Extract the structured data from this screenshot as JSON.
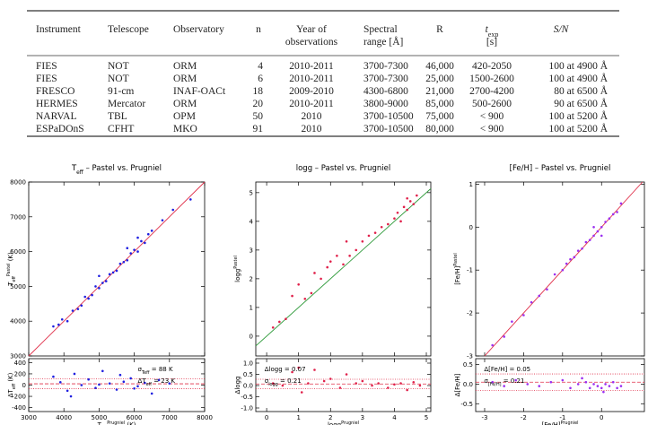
{
  "table": {
    "header": [
      [
        [
          {
            "t": "Instrument"
          }
        ]
      ],
      [
        [
          {
            "t": "Telescope"
          }
        ]
      ],
      [
        [
          {
            "t": "Observatory"
          }
        ]
      ],
      [
        [
          {
            "t": "n"
          }
        ]
      ],
      [
        [
          {
            "t": "Year of"
          }
        ],
        [
          {
            "t": "observations"
          }
        ]
      ],
      [
        [
          {
            "t": "Spectral"
          }
        ],
        [
          {
            "t": "range [Å]"
          }
        ]
      ],
      [
        [
          {
            "t": "R"
          }
        ]
      ],
      [
        [
          {
            "t": "t",
            "s": "i"
          },
          {
            "t": "exp",
            "s": "sub"
          }
        ],
        [
          {
            "t": "[s]"
          }
        ]
      ],
      [
        [
          {
            "t": "S/N",
            "s": "i"
          }
        ]
      ]
    ],
    "rows": [
      [
        "FIES",
        "NOT",
        "ORM",
        "4",
        "2010-2011",
        "3700-7300",
        "46,000",
        "420-2050",
        "100 at 4900 Å"
      ],
      [
        "FIES",
        "NOT",
        "ORM",
        "6",
        "2010-2011",
        "3700-7300",
        "25,000",
        "1500-2600",
        "100 at 4900 Å"
      ],
      [
        "FRESCO",
        "91-cm",
        "INAF-OACt",
        "18",
        "2009-2010",
        "4300-6800",
        "21,000",
        "2700-4200",
        "80 at 6500 Å"
      ],
      [
        "HERMES",
        "Mercator",
        "ORM",
        "20",
        "2010-2011",
        "3800-9000",
        "85,000",
        "500-2600",
        "90 at 6500 Å"
      ],
      [
        "NARVAL",
        "TBL",
        "OPM",
        "50",
        "2010",
        "3700-10500",
        "75,000",
        "< 900",
        "100 at 5200 Å"
      ],
      [
        "ESPaDOnS",
        "CFHT",
        "MKO",
        "91",
        "2010",
        "3700-10500",
        "80,000",
        "< 900",
        "100 at 5200 Å"
      ]
    ]
  },
  "chart_data": [
    {
      "type": "scatter",
      "color": "#1f1fe0",
      "line_color": "#e0304a",
      "diagonal": true,
      "title": [
        {
          "t": "T"
        },
        {
          "t": "eff",
          "s": "sub"
        },
        {
          "t": "  –  Pastel vs. Prugniel"
        }
      ],
      "ylabel": [
        {
          "t": "T"
        },
        {
          "t": "eff",
          "s": "sub"
        },
        {
          "t": "Pastel",
          "s": "super"
        },
        {
          "t": " (K)"
        }
      ],
      "xlabel": [
        {
          "t": "T"
        },
        {
          "t": "eff",
          "s": "sub"
        },
        {
          "t": "Prugniel",
          "s": "super"
        },
        {
          "t": " (K)"
        }
      ],
      "xlim": [
        3000,
        8000
      ],
      "xticks": [
        3000,
        4000,
        5000,
        6000,
        7000,
        8000
      ],
      "ylim": [
        3000,
        8000
      ],
      "yticks": [
        3000,
        4000,
        5000,
        6000,
        7000,
        8000
      ],
      "x": [
        3700,
        3850,
        3950,
        4100,
        4250,
        4400,
        4500,
        4600,
        4700,
        4800,
        4900,
        5000,
        5100,
        5200,
        5300,
        5400,
        5500,
        5600,
        5700,
        5800,
        5900,
        6000,
        6100,
        6200,
        6300,
        6400,
        6100,
        6500,
        6800,
        7100,
        7600,
        5000,
        5800
      ],
      "values": [
        3850,
        3900,
        4050,
        4000,
        4300,
        4350,
        4450,
        4700,
        4650,
        4750,
        5000,
        4950,
        5100,
        5150,
        5350,
        5400,
        5450,
        5650,
        5700,
        5750,
        5950,
        6050,
        6000,
        6300,
        6250,
        6500,
        6400,
        6600,
        6900,
        7200,
        7500,
        5300,
        6100
      ],
      "residual": {
        "ylabel": [
          {
            "t": "ΔT"
          },
          {
            "t": "eff",
            "s": "sub"
          },
          {
            "t": " (K)"
          }
        ],
        "ylim": [
          -470,
          470
        ],
        "yticks": [
          -400,
          -200,
          0,
          200,
          400
        ],
        "x": [
          3700,
          3900,
          4100,
          4300,
          4500,
          4700,
          4900,
          5100,
          5300,
          5500,
          5700,
          5900,
          6100,
          6300,
          6500,
          6700,
          7000,
          4200,
          5600,
          6000,
          5000
        ],
        "values": [
          150,
          50,
          -100,
          200,
          0,
          100,
          -50,
          250,
          30,
          -80,
          60,
          120,
          -20,
          40,
          -150,
          90,
          30,
          -200,
          180,
          -60,
          10
        ],
        "hlines": [
          -65,
          23,
          111
        ],
        "annotations": [
          [
            {
              "t": "σ"
            },
            {
              "t": "Teff",
              "s": "sub"
            },
            {
              "t": " = 88 K"
            }
          ],
          [
            {
              "t": "ΔT"
            },
            {
              "t": "eff",
              "s": "sub"
            },
            {
              "t": " = 23 K"
            }
          ]
        ]
      }
    },
    {
      "type": "scatter",
      "color": "#e0204a",
      "line_color": "#2e9a3a",
      "diagonal": true,
      "title": [
        {
          "t": "logg  –  Pastel vs. Prugniel"
        }
      ],
      "ylabel": [
        {
          "t": "logg"
        },
        {
          "t": "Pastel",
          "s": "super"
        }
      ],
      "xlabel": [
        {
          "t": "logg"
        },
        {
          "t": "Prugniel",
          "s": "super"
        }
      ],
      "xlim": [
        -0.34,
        5.14
      ],
      "xticks": [
        0,
        1,
        2,
        3,
        4,
        5
      ],
      "ylim": [
        -0.69,
        5.37
      ],
      "yticks": [
        0,
        1,
        2,
        3,
        4,
        5
      ],
      "x": [
        0.2,
        0.4,
        0.6,
        0.8,
        1.0,
        1.2,
        1.4,
        1.5,
        1.7,
        1.9,
        2.0,
        2.2,
        2.4,
        2.5,
        2.6,
        2.8,
        3.0,
        3.2,
        3.4,
        3.6,
        3.8,
        4.0,
        4.1,
        4.2,
        4.3,
        4.4,
        4.5,
        4.6,
        4.7,
        4.4
      ],
      "values": [
        0.3,
        0.5,
        0.6,
        1.4,
        1.8,
        1.3,
        1.5,
        2.2,
        2.0,
        2.4,
        2.6,
        2.8,
        2.5,
        3.3,
        2.8,
        3.0,
        3.3,
        3.5,
        3.6,
        3.8,
        3.9,
        4.1,
        4.3,
        4.0,
        4.5,
        4.4,
        4.7,
        4.6,
        4.9,
        4.8
      ],
      "residual": {
        "ylabel": [
          {
            "t": "Δlogg"
          }
        ],
        "ylim": [
          -1.16,
          1.2
        ],
        "yticks": [
          {
            "value": -1,
            "label": "-1.0"
          },
          -0.5,
          {
            "value": 0,
            "label": "0.0"
          },
          0.5,
          {
            "value": 1,
            "label": "1.0"
          }
        ],
        "x": [
          0.2,
          0.5,
          0.8,
          1.0,
          1.3,
          1.5,
          1.8,
          2.0,
          2.3,
          2.5,
          2.8,
          3.0,
          3.3,
          3.5,
          3.8,
          4.0,
          4.2,
          4.4,
          4.6,
          4.8,
          1.1
        ],
        "values": [
          0.1,
          0.0,
          0.6,
          0.8,
          0.1,
          0.7,
          0.2,
          0.3,
          -0.1,
          0.5,
          0.1,
          0.2,
          0.0,
          0.1,
          -0.1,
          0.05,
          0.1,
          -0.2,
          0.15,
          0.0,
          -0.3
        ],
        "hlines": [
          -0.14,
          0.07,
          0.28
        ],
        "annotations": [
          [
            {
              "t": "Δlogg = 0.07"
            }
          ],
          [
            {
              "t": "σ"
            },
            {
              "t": "logg",
              "s": "sub"
            },
            {
              "t": " = 0.21"
            }
          ]
        ]
      }
    },
    {
      "type": "scatter",
      "color": "#9b2ff0",
      "line_color": "#e0304a",
      "diagonal": true,
      "title": [
        {
          "t": "[Fe/H]  –  Pastel vs. Prugniel"
        }
      ],
      "ylabel": [
        {
          "t": "[Fe/H]"
        },
        {
          "t": "Pastel",
          "s": "super"
        }
      ],
      "xlabel": [
        {
          "t": "[Fe/H]"
        },
        {
          "t": "Prugniel",
          "s": "super"
        }
      ],
      "xlim": [
        -3.23,
        1.1
      ],
      "xticks": [
        -3,
        -2,
        -1,
        0
      ],
      "ylim": [
        -3,
        1.05
      ],
      "yticks": [
        -3,
        -2,
        -1,
        0,
        1
      ],
      "x": [
        -2.8,
        -2.5,
        -2.3,
        -2.0,
        -1.8,
        -1.6,
        -1.4,
        -1.2,
        -1.0,
        -0.9,
        -0.8,
        -0.7,
        -0.6,
        -0.5,
        -0.4,
        -0.3,
        -0.2,
        -0.1,
        0.0,
        0.1,
        0.2,
        0.3,
        0.4,
        0.5,
        -0.2,
        0.0
      ],
      "values": [
        -2.75,
        -2.55,
        -2.2,
        -2.05,
        -1.75,
        -1.6,
        -1.45,
        -1.1,
        -1.0,
        -0.85,
        -0.75,
        -0.7,
        -0.55,
        -0.5,
        -0.35,
        -0.3,
        -0.2,
        -0.1,
        0.0,
        0.12,
        0.2,
        0.3,
        0.35,
        0.55,
        0.0,
        -0.2
      ],
      "residual": {
        "ylabel": [
          {
            "t": "Δ[Fe/H]"
          }
        ],
        "ylim": [
          -0.7,
          0.65
        ],
        "yticks": [
          -0.5,
          {
            "value": 0,
            "label": "0.0"
          },
          0.5
        ],
        "x": [
          -2.8,
          -2.5,
          -2.2,
          -1.9,
          -1.6,
          -1.3,
          -1.0,
          -0.8,
          -0.6,
          -0.4,
          -0.3,
          -0.2,
          -0.1,
          0.0,
          0.1,
          0.2,
          0.3,
          0.4,
          0.5,
          -0.5,
          0.05
        ],
        "values": [
          0.05,
          -0.05,
          0.1,
          0.0,
          -0.05,
          0.05,
          0.1,
          -0.1,
          0.0,
          0.05,
          -0.1,
          0.0,
          -0.05,
          -0.1,
          0.0,
          -0.05,
          0.05,
          -0.1,
          -0.05,
          0.15,
          -0.2
        ],
        "hlines": [
          -0.16,
          0.05,
          0.26
        ],
        "annotations": [
          [
            {
              "t": "Δ[Fe/H] = 0.05"
            }
          ],
          [
            {
              "t": "σ"
            },
            {
              "t": "[Fe/H]",
              "s": "sub"
            },
            {
              "t": " = 0.21"
            }
          ]
        ]
      }
    }
  ]
}
